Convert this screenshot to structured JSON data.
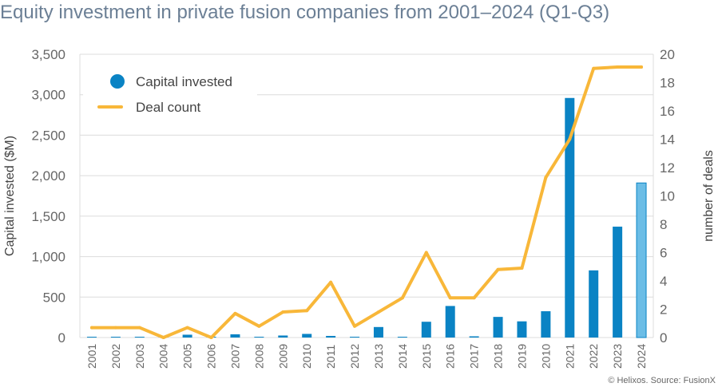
{
  "title": "Equity investment in private fusion companies from 2001–2024 (Q1-Q3)",
  "credit": "© Helixos. Source: FusionX",
  "colors": {
    "bar": "#0a83c4",
    "bar_partial": "#6bbde6",
    "line": "#f8b739",
    "title": "#6b7f95",
    "axis_text": "#666666"
  },
  "chart_data": {
    "type": "bar",
    "title": "Equity investment in private fusion companies from 2001–2024 (Q1-Q3)",
    "categories": [
      "2001",
      "2002",
      "2003",
      "2004",
      "2005",
      "2006",
      "2007",
      "2008",
      "2009",
      "2010",
      "2011",
      "2012",
      "2013",
      "2014",
      "2015",
      "2016",
      "2017",
      "2018",
      "2019",
      "2010",
      "2021",
      "2022",
      "2023",
      "2024"
    ],
    "series": [
      {
        "name": "Capital invested",
        "type": "bar",
        "axis": "left",
        "values": [
          5,
          5,
          5,
          0,
          35,
          0,
          40,
          0,
          25,
          45,
          20,
          10,
          130,
          5,
          195,
          390,
          15,
          255,
          200,
          325,
          2960,
          830,
          1370,
          1910
        ]
      },
      {
        "name": "Deal count",
        "type": "line",
        "axis": "right",
        "values": [
          0.7,
          0.7,
          0.7,
          0,
          0.7,
          0,
          1.7,
          0.8,
          1.8,
          1.9,
          3.9,
          0.8,
          1.8,
          2.8,
          6.0,
          2.8,
          2.8,
          4.8,
          4.9,
          11.3,
          14.0,
          19.0,
          19.1,
          19.1
        ]
      }
    ],
    "ylabel": "Capital invested ($M)",
    "y2label": "number of deals",
    "ylim": [
      0,
      3500
    ],
    "y2lim": [
      0,
      20
    ],
    "yticks": [
      "0",
      "500",
      "1,000",
      "1,500",
      "2,000",
      "2,500",
      "3,000",
      "3,500"
    ],
    "y2ticks": [
      "0",
      "2",
      "4",
      "6",
      "8",
      "10",
      "12",
      "14",
      "16",
      "18",
      "20"
    ],
    "grid": true,
    "legend": "top-left",
    "highlighted_category": "2024"
  }
}
